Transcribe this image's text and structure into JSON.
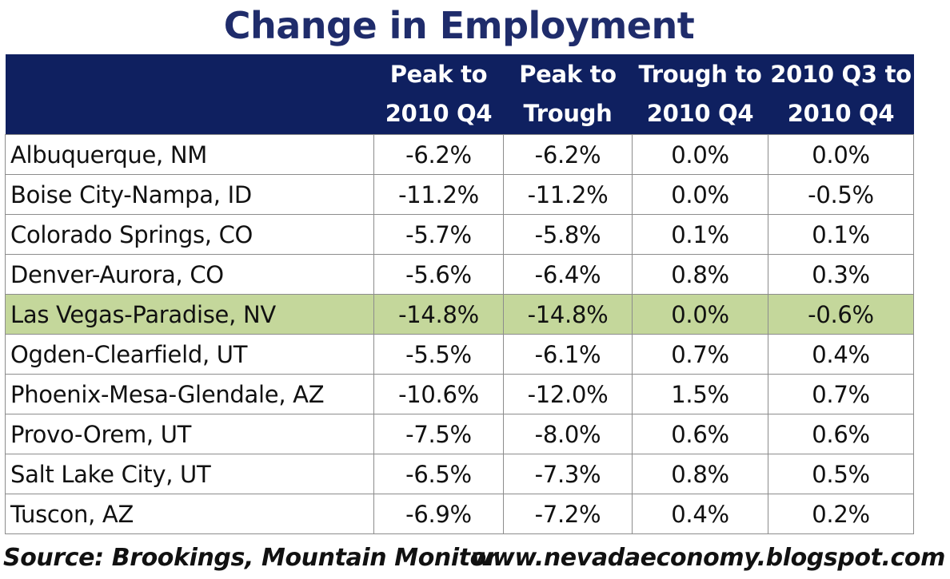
{
  "title": "Change in Employment",
  "colors": {
    "title": "#1f2c6b",
    "header_bg": "#0f2060",
    "header_text": "#ffffff",
    "highlight_row": "#c4d79b",
    "grid": "#8c8c8c"
  },
  "footer": {
    "source": "Source: Brookings, Mountain Monitor",
    "url": "www.nevadaeconomy.blogspot.com"
  },
  "chart_data": {
    "type": "table",
    "title": "Change in Employment",
    "columns": [
      {
        "line1": "",
        "line2": ""
      },
      {
        "line1": "Peak to",
        "line2": "2010 Q4"
      },
      {
        "line1": "Peak to",
        "line2": "Trough"
      },
      {
        "line1": "Trough to",
        "line2": "2010 Q4"
      },
      {
        "line1": "2010 Q3 to",
        "line2": "2010 Q4"
      }
    ],
    "rows": [
      {
        "name": "Albuquerque, NM",
        "values": [
          "-6.2%",
          "-6.2%",
          "0.0%",
          "0.0%"
        ],
        "highlight": false
      },
      {
        "name": "Boise City-Nampa, ID",
        "values": [
          "-11.2%",
          "-11.2%",
          "0.0%",
          "-0.5%"
        ],
        "highlight": false
      },
      {
        "name": "Colorado Springs, CO",
        "values": [
          "-5.7%",
          "-5.8%",
          "0.1%",
          "0.1%"
        ],
        "highlight": false
      },
      {
        "name": "Denver-Aurora, CO",
        "values": [
          "-5.6%",
          "-6.4%",
          "0.8%",
          "0.3%"
        ],
        "highlight": false
      },
      {
        "name": "Las Vegas-Paradise, NV",
        "values": [
          "-14.8%",
          "-14.8%",
          "0.0%",
          "-0.6%"
        ],
        "highlight": true
      },
      {
        "name": "Ogden-Clearfield, UT",
        "values": [
          "-5.5%",
          "-6.1%",
          "0.7%",
          "0.4%"
        ],
        "highlight": false
      },
      {
        "name": "Phoenix-Mesa-Glendale, AZ",
        "values": [
          "-10.6%",
          "-12.0%",
          "1.5%",
          "0.7%"
        ],
        "highlight": false
      },
      {
        "name": "Provo-Orem, UT",
        "values": [
          "-7.5%",
          "-8.0%",
          "0.6%",
          "0.6%"
        ],
        "highlight": false
      },
      {
        "name": "Salt Lake City, UT",
        "values": [
          "-6.5%",
          "-7.3%",
          "0.8%",
          "0.5%"
        ],
        "highlight": false
      },
      {
        "name": "Tuscon, AZ",
        "values": [
          "-6.9%",
          "-7.2%",
          "0.4%",
          "0.2%"
        ],
        "highlight": false
      }
    ]
  }
}
